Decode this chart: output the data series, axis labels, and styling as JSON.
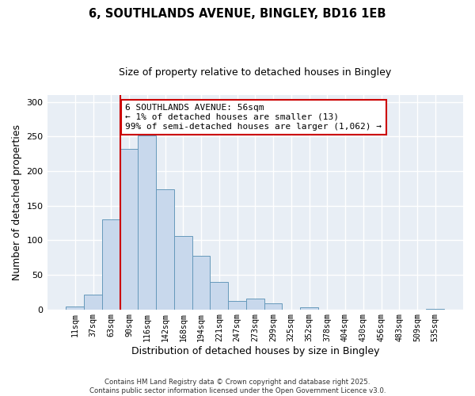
{
  "title": "6, SOUTHLANDS AVENUE, BINGLEY, BD16 1EB",
  "subtitle": "Size of property relative to detached houses in Bingley",
  "xlabel": "Distribution of detached houses by size in Bingley",
  "ylabel": "Number of detached properties",
  "bar_color": "#c8d8ec",
  "bar_edge_color": "#6699bb",
  "categories": [
    "11sqm",
    "37sqm",
    "63sqm",
    "90sqm",
    "116sqm",
    "142sqm",
    "168sqm",
    "194sqm",
    "221sqm",
    "247sqm",
    "273sqm",
    "299sqm",
    "325sqm",
    "352sqm",
    "378sqm",
    "404sqm",
    "430sqm",
    "456sqm",
    "483sqm",
    "509sqm",
    "535sqm"
  ],
  "values": [
    4,
    21,
    130,
    232,
    251,
    174,
    106,
    77,
    40,
    12,
    16,
    9,
    0,
    3,
    0,
    0,
    0,
    0,
    0,
    0,
    1
  ],
  "ylim": [
    0,
    310
  ],
  "yticks": [
    0,
    50,
    100,
    150,
    200,
    250,
    300
  ],
  "marker_idx": 2.5,
  "marker_label_line1": "6 SOUTHLANDS AVENUE: 56sqm",
  "marker_label_line2": "← 1% of detached houses are smaller (13)",
  "marker_label_line3": "99% of semi-detached houses are larger (1,062) →",
  "annotation_box_color": "#ffffff",
  "annotation_box_edge_color": "#cc0000",
  "marker_line_color": "#cc0000",
  "footer_line1": "Contains HM Land Registry data © Crown copyright and database right 2025.",
  "footer_line2": "Contains public sector information licensed under the Open Government Licence v3.0.",
  "background_color": "#e8eef5",
  "grid_color": "#d0dae5"
}
